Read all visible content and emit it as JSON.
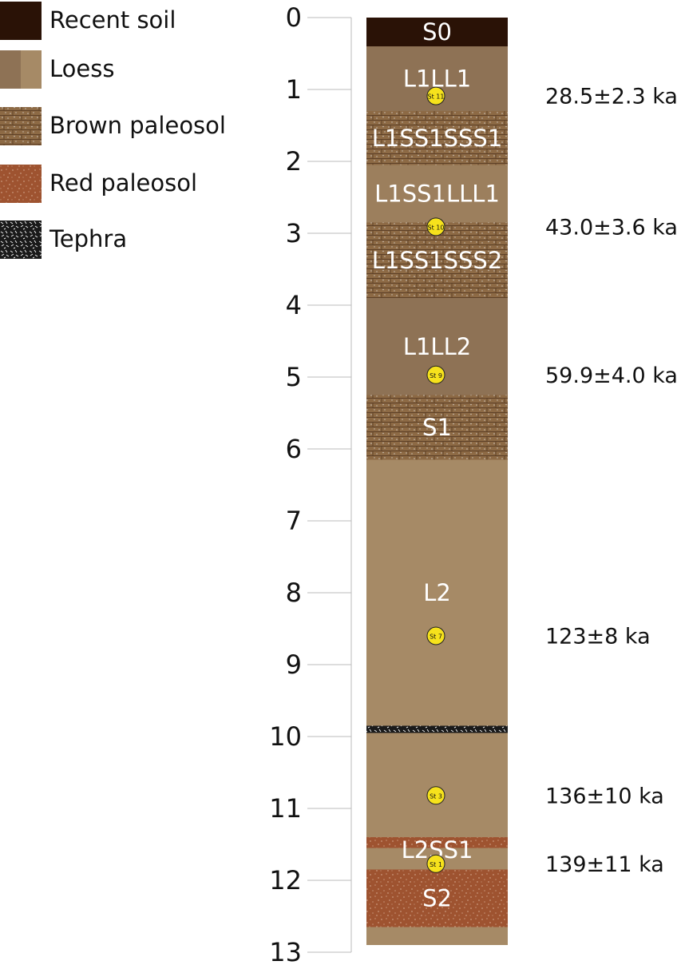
{
  "legend": [
    {
      "label": "Recent soil",
      "type": "recent-soil",
      "color": "#2a1206"
    },
    {
      "label": "Loess",
      "type": "loess",
      "color": "#a68a66"
    },
    {
      "label": "Brown paleosol",
      "type": "brown-paleosol",
      "color": "#8d6a45"
    },
    {
      "label": "Red paleosol",
      "type": "red-paleosol",
      "color": "#9e5330"
    },
    {
      "label": "Tephra",
      "type": "tephra",
      "color": "#1a1a1a"
    }
  ],
  "depth_axis": {
    "range": [
      0,
      13
    ],
    "ticks": [
      0,
      1,
      2,
      3,
      4,
      5,
      6,
      7,
      8,
      9,
      10,
      11,
      12,
      13
    ]
  },
  "layers": [
    {
      "type": "recent-soil",
      "top": 0,
      "bottom": 0.4,
      "label": "S0",
      "color": "#2a1206"
    },
    {
      "type": "loess",
      "top": 0.4,
      "bottom": 1.3,
      "label": "L1LL1",
      "color": "#8e7255"
    },
    {
      "type": "brown-paleosol",
      "top": 1.3,
      "bottom": 2.05,
      "label": "L1SS1SSS1",
      "color": "#8d6a45"
    },
    {
      "type": "loess",
      "top": 2.05,
      "bottom": 2.85,
      "label": "L1SS1LLL1",
      "color": "#9c7f5d"
    },
    {
      "type": "brown-paleosol",
      "top": 2.85,
      "bottom": 3.9,
      "label": "L1SS1SSS2",
      "color": "#8d6a45"
    },
    {
      "type": "loess",
      "top": 3.9,
      "bottom": 5.25,
      "label": "L1LL2",
      "color": "#8e7255"
    },
    {
      "type": "brown-paleosol",
      "top": 5.25,
      "bottom": 6.15,
      "label": "S1",
      "color": "#8d6a45"
    },
    {
      "type": "loess",
      "top": 6.15,
      "bottom": 9.85,
      "label": "L2",
      "color": "#a68a66"
    },
    {
      "type": "tephra",
      "top": 9.85,
      "bottom": 9.95,
      "color": "#1a1a1a"
    },
    {
      "type": "loess",
      "top": 9.95,
      "bottom": 11.4,
      "color": "#a68a66"
    },
    {
      "type": "red-paleosol",
      "top": 11.4,
      "bottom": 11.55,
      "label": "L2SS1",
      "color": "#9e5330"
    },
    {
      "type": "loess",
      "top": 11.55,
      "bottom": 11.85,
      "color": "#a68a66"
    },
    {
      "type": "red-paleosol",
      "top": 11.85,
      "bottom": 12.65,
      "label": "S2",
      "color": "#9e5330"
    },
    {
      "type": "loess",
      "top": 12.65,
      "bottom": 12.9,
      "color": "#a68a66"
    }
  ],
  "samples": [
    {
      "id": "St 11",
      "depth": 1.09,
      "age": "28.5±2.3 ka"
    },
    {
      "id": "St 10",
      "depth": 2.91,
      "age": "43.0±3.6 ka"
    },
    {
      "id": "St 9",
      "depth": 4.97,
      "age": "59.9±4.0 ka"
    },
    {
      "id": "St 7",
      "depth": 8.6,
      "age": "123±8 ka"
    },
    {
      "id": "St 3",
      "depth": 10.82,
      "age": "136±10 ka"
    },
    {
      "id": "St 1",
      "depth": 11.77,
      "age": "139±11 ka"
    }
  ]
}
